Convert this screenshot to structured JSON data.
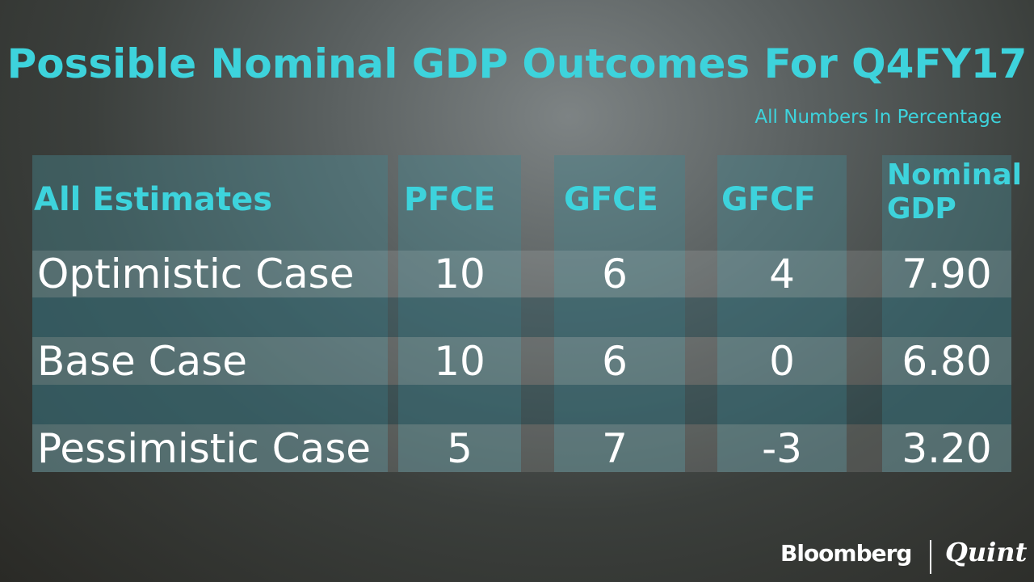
{
  "header": {
    "title": "Possible Nominal GDP Outcomes For Q4FY17",
    "subtitle": "All Numbers In Percentage"
  },
  "table": {
    "columns": [
      "All Estimates",
      "PFCE",
      "GFCE",
      "GFCF",
      "Nominal GDP"
    ],
    "rows": [
      [
        "Optimistic Case",
        "10",
        "6",
        "4",
        "7.90"
      ],
      [
        "Base Case",
        "10",
        "6",
        "0",
        "6.80"
      ],
      [
        "Pessimistic Case",
        "5",
        "7",
        "-3",
        "3.20"
      ]
    ]
  },
  "footer": {
    "brand": "Bloomberg",
    "partner": "Quint"
  }
}
